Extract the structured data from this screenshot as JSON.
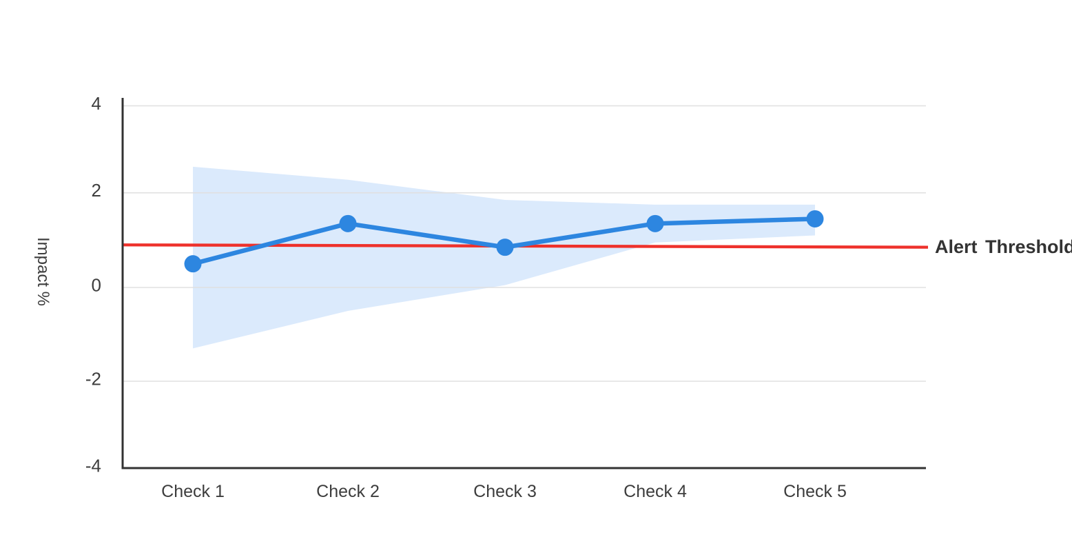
{
  "chart_data": {
    "type": "line",
    "title": "",
    "xlabel": "",
    "ylabel": "Impact %",
    "categories": [
      "Check 1",
      "Check 2",
      "Check 3",
      "Check 4",
      "Check 5"
    ],
    "series": [
      {
        "name": "Impact",
        "values": [
          0.5,
          1.35,
          0.85,
          1.35,
          1.45
        ],
        "color": "#2d86e0",
        "point_radius_px": 12.5
      }
    ],
    "band": {
      "name": "confidence-band",
      "upper": [
        2.6,
        2.3,
        1.85,
        1.75,
        1.75
      ],
      "lower": [
        -1.3,
        -0.5,
        0.05,
        0.95,
        1.1
      ],
      "color": "#dbeafc"
    },
    "threshold": {
      "label": "Alert Threshold",
      "start": 0.9,
      "end": 0.85,
      "color": "#ee312b"
    },
    "yticks": [
      4,
      2,
      0,
      -2,
      -4
    ],
    "ylim": [
      -4,
      4
    ],
    "grid": true,
    "legend": "none",
    "colors": {
      "grid": "#e0e0e0",
      "axis": "#323232",
      "tick_text": "#3d3d3d",
      "threshold_text": "#333333",
      "background": "#ffffff"
    }
  }
}
